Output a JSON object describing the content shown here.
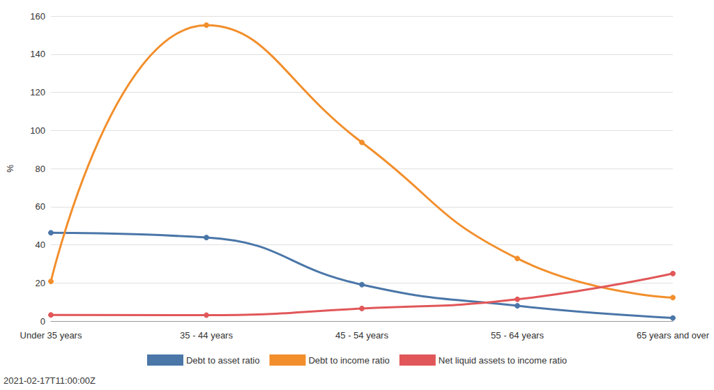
{
  "chart_data": {
    "type": "line",
    "subtitle": "2021-02-17T11:00:00Z",
    "y_label": "%",
    "categories": [
      "Under 35 years",
      "35 - 44 years",
      "45 - 54 years",
      "55 - 64 years",
      "65 years and over"
    ],
    "series": [
      {
        "name": "Debt to asset ratio",
        "color": "#4a76a8",
        "values": [
          46.3,
          43.8,
          19.1,
          8.0,
          1.6
        ]
      },
      {
        "name": "Debt to income ratio",
        "color": "#f28e2b",
        "values": [
          20.8,
          155.2,
          93.7,
          32.8,
          12.3
        ]
      },
      {
        "name": "Net liquid assets to income ratio",
        "color": "#e15759",
        "values": [
          3.2,
          3.1,
          6.6,
          11.4,
          24.9
        ]
      }
    ],
    "ylim": [
      0,
      160
    ],
    "yticks": [
      0,
      20,
      40,
      60,
      80,
      100,
      120,
      140,
      160
    ],
    "grid": true,
    "legend": "bottom",
    "marker": "circle",
    "line_style": "smooth"
  }
}
